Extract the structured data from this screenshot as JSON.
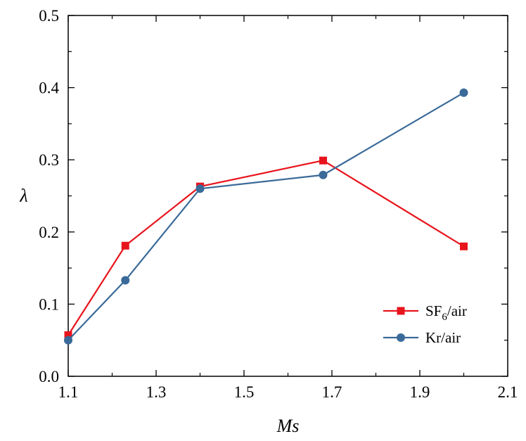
{
  "chart_data": {
    "type": "line",
    "xlabel": "Ms",
    "ylabel": "λ",
    "xlim": [
      1.1,
      2.1
    ],
    "ylim": [
      0.0,
      0.5
    ],
    "xticks": [
      "1.1",
      "1.3",
      "1.5",
      "1.7",
      "1.9",
      "2.1"
    ],
    "yticks": [
      "0.0",
      "0.1",
      "0.2",
      "0.3",
      "0.4",
      "0.5"
    ],
    "grid": false,
    "legend_position": "bottom-right",
    "series": [
      {
        "name": "SF6/air",
        "legend_main": "SF",
        "legend_sub": "6",
        "legend_tail": "/air",
        "color": "#e8141c",
        "marker": "square",
        "x": [
          1.1,
          1.23,
          1.4,
          1.68,
          2.0
        ],
        "y": [
          0.057,
          0.181,
          0.263,
          0.299,
          0.18
        ]
      },
      {
        "name": "Kr/air",
        "legend_main": "Kr/air",
        "legend_sub": "",
        "legend_tail": "",
        "color": "#3a6a99",
        "marker": "circle",
        "x": [
          1.1,
          1.23,
          1.4,
          1.68,
          2.0
        ],
        "y": [
          0.05,
          0.133,
          0.26,
          0.279,
          0.393
        ]
      }
    ]
  }
}
